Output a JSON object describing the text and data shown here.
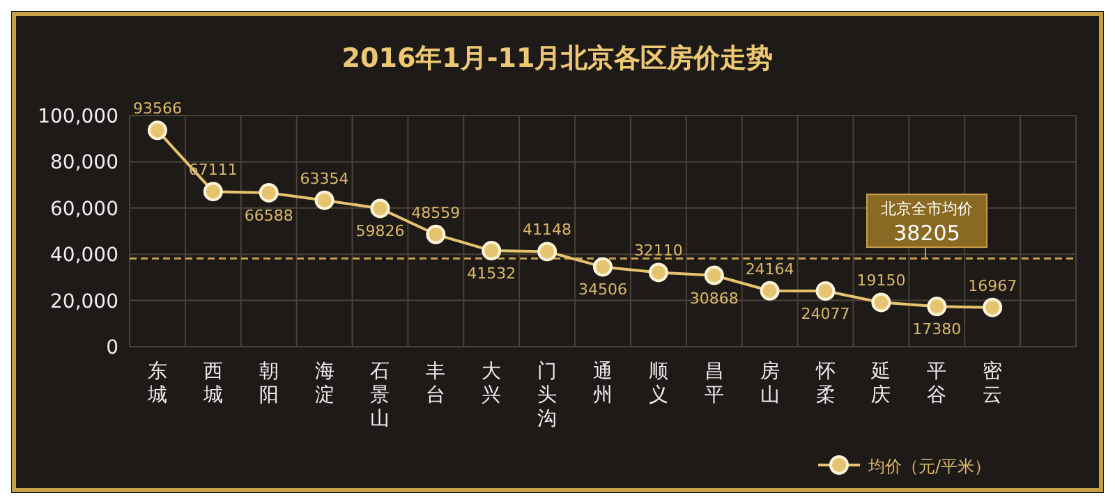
{
  "chart_data": {
    "type": "line",
    "title": "2016年1月-11月北京各区房价走势",
    "categories": [
      "东城",
      "西城",
      "朝阳",
      "海淀",
      "石景山",
      "丰台",
      "大兴",
      "门头沟",
      "通州",
      "顺义",
      "昌平",
      "房山",
      "怀柔",
      "延庆",
      "平谷",
      "密云"
    ],
    "series": [
      {
        "name": "均价（元/平米）",
        "color": "#e6c36f",
        "values": [
          93566,
          67111,
          66588,
          63354,
          59826,
          48559,
          41532,
          41148,
          34506,
          32110,
          30868,
          24164,
          24077,
          19150,
          17380,
          16967
        ]
      }
    ],
    "ylim": [
      0,
      100000
    ],
    "yticks": [
      {
        "value": 0,
        "label": "0"
      },
      {
        "value": 20000,
        "label": "20,000"
      },
      {
        "value": 40000,
        "label": "40,000"
      },
      {
        "value": 60000,
        "label": "60,000"
      },
      {
        "value": 80000,
        "label": "80,000"
      },
      {
        "value": 100000,
        "label": "100,000"
      }
    ],
    "ref_lines": [
      {
        "axis": "y",
        "value": 38205,
        "label": "北京全市均价 38205",
        "color": "#c9a04a",
        "line_style": "dashed"
      }
    ],
    "data_labels": true,
    "grid": true,
    "legend": "bottom right",
    "marker": "circle",
    "line_style": "solid"
  }
}
